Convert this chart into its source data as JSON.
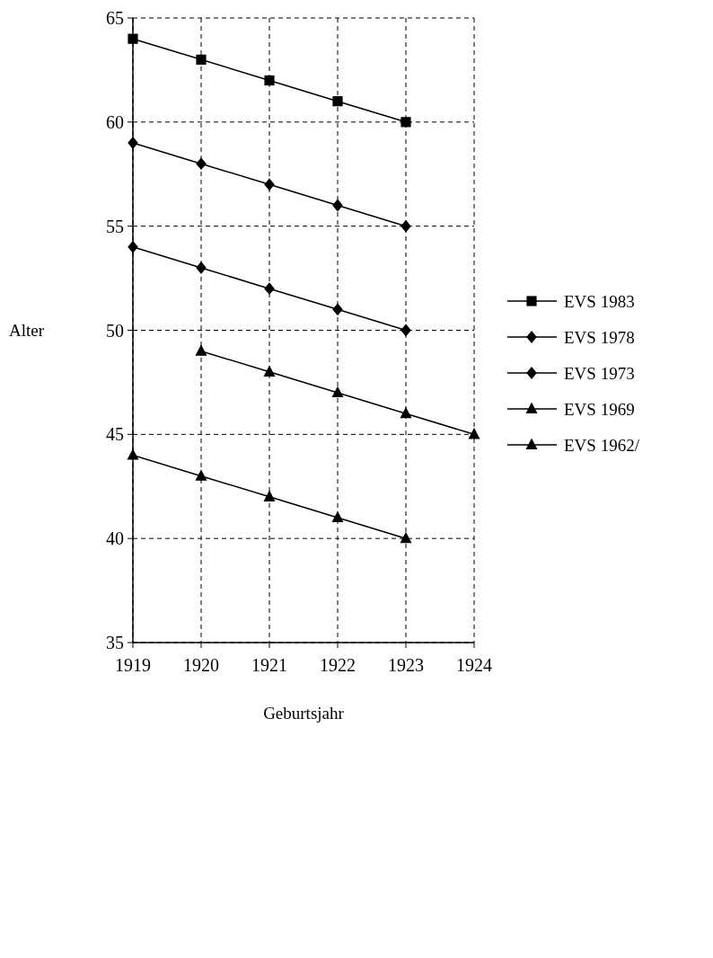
{
  "chart_data": {
    "type": "line",
    "xlabel": "Geburtsjahr",
    "ylabel": "Alter",
    "xlim": [
      1919,
      1924
    ],
    "xticks": [
      1919,
      1920,
      1921,
      1922,
      1923,
      1924
    ],
    "ylim": [
      35,
      65
    ],
    "yticks": [
      35,
      40,
      45,
      50,
      55,
      60,
      65
    ],
    "grid": true,
    "legend": "right",
    "line_style": "solid",
    "series": [
      {
        "name": "EVS 1983",
        "color": "#000000",
        "marker": "square",
        "x": [
          1919,
          1920,
          1921,
          1922,
          1923
        ],
        "values": [
          64,
          63,
          62,
          61,
          60
        ]
      },
      {
        "name": "EVS 1978",
        "color": "#000000",
        "marker": "diamond",
        "x": [
          1919,
          1920,
          1921,
          1922,
          1923
        ],
        "values": [
          59,
          58,
          57,
          56,
          55
        ]
      },
      {
        "name": "EVS 1973",
        "color": "#000000",
        "marker": "diamond",
        "x": [
          1919,
          1920,
          1921,
          1922,
          1923
        ],
        "values": [
          54,
          53,
          52,
          51,
          50
        ]
      },
      {
        "name": "EVS 1969",
        "color": "#000000",
        "marker": "triangle",
        "x": [
          1920,
          1921,
          1922,
          1923,
          1924
        ],
        "values": [
          49,
          48,
          47,
          46,
          45
        ]
      },
      {
        "name": "EVS 1962/",
        "color": "#000000",
        "marker": "triangle",
        "x": [
          1919,
          1920,
          1921,
          1922,
          1923
        ],
        "values": [
          44,
          43,
          42,
          41,
          40
        ]
      }
    ]
  }
}
